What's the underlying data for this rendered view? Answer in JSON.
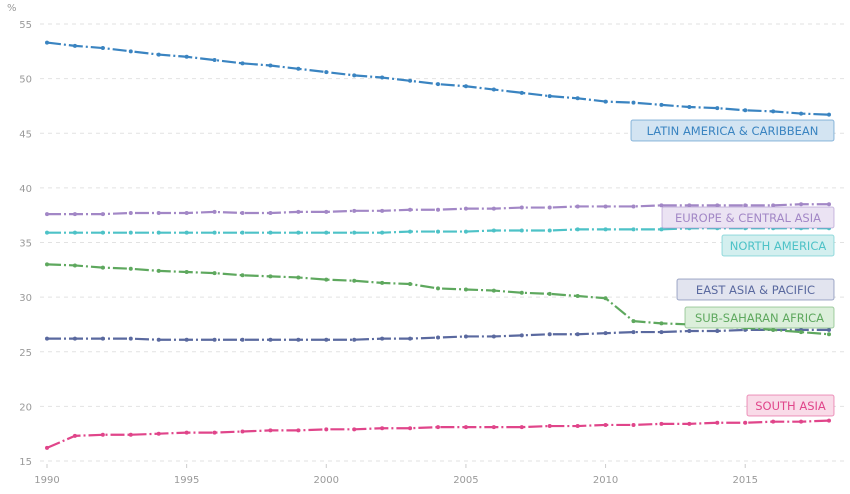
{
  "chart_data": {
    "type": "line",
    "title": "",
    "xlabel": "",
    "ylabel": "%",
    "xlim": [
      1990,
      2018
    ],
    "ylim": [
      15,
      55
    ],
    "grid": true,
    "x_ticks": [
      "1990",
      "1995",
      "2000",
      "2005",
      "2010",
      "2015"
    ],
    "y_ticks": [
      "15",
      "20",
      "25",
      "30",
      "35",
      "40",
      "45",
      "50",
      "55"
    ],
    "x": [
      1990,
      1991,
      1992,
      1993,
      1994,
      1995,
      1996,
      1997,
      1998,
      1999,
      2000,
      2001,
      2002,
      2003,
      2004,
      2005,
      2006,
      2007,
      2008,
      2009,
      2010,
      2011,
      2012,
      2013,
      2014,
      2015,
      2016,
      2017,
      2018
    ],
    "series": [
      {
        "name": "LATIN AMERICA & CARIBBEAN",
        "color": "#3a84c1",
        "fill": "#d3e4f2",
        "values": [
          53.3,
          53.0,
          52.8,
          52.5,
          52.2,
          52.0,
          51.7,
          51.4,
          51.2,
          50.9,
          50.6,
          50.3,
          50.1,
          49.8,
          49.5,
          49.3,
          49.0,
          48.7,
          48.4,
          48.2,
          47.9,
          47.8,
          47.6,
          47.4,
          47.3,
          47.1,
          47.0,
          46.8,
          46.7
        ]
      },
      {
        "name": "EUROPE & CENTRAL ASIA",
        "color": "#a287c6",
        "fill": "#ebe3f3",
        "values": [
          37.6,
          37.6,
          37.6,
          37.7,
          37.7,
          37.7,
          37.8,
          37.7,
          37.7,
          37.8,
          37.8,
          37.9,
          37.9,
          38.0,
          38.0,
          38.1,
          38.1,
          38.2,
          38.2,
          38.3,
          38.3,
          38.3,
          38.4,
          38.4,
          38.4,
          38.4,
          38.4,
          38.5,
          38.5
        ]
      },
      {
        "name": "NORTH AMERICA",
        "color": "#4dc2c7",
        "fill": "#d3efef",
        "values": [
          35.9,
          35.9,
          35.9,
          35.9,
          35.9,
          35.9,
          35.9,
          35.9,
          35.9,
          35.9,
          35.9,
          35.9,
          35.9,
          36.0,
          36.0,
          36.0,
          36.1,
          36.1,
          36.1,
          36.2,
          36.2,
          36.2,
          36.2,
          36.3,
          36.3,
          36.3,
          36.3,
          36.3,
          36.3
        ]
      },
      {
        "name": "EAST ASIA & PACIFIC",
        "color": "#5a699f",
        "fill": "#e2e4ef",
        "values": [
          26.2,
          26.2,
          26.2,
          26.2,
          26.1,
          26.1,
          26.1,
          26.1,
          26.1,
          26.1,
          26.1,
          26.1,
          26.2,
          26.2,
          26.3,
          26.4,
          26.4,
          26.5,
          26.6,
          26.6,
          26.7,
          26.8,
          26.8,
          26.9,
          26.9,
          27.0,
          27.0,
          27.0,
          27.0
        ]
      },
      {
        "name": "SUB-SAHARAN AFRICA",
        "color": "#5ea85e",
        "fill": "#dcefdb",
        "values": [
          33.0,
          32.9,
          32.7,
          32.6,
          32.4,
          32.3,
          32.2,
          32.0,
          31.9,
          31.8,
          31.6,
          31.5,
          31.3,
          31.2,
          30.8,
          30.7,
          30.6,
          30.4,
          30.3,
          30.1,
          29.9,
          27.8,
          27.6,
          27.5,
          27.3,
          27.2,
          27.0,
          26.8,
          26.6
        ]
      },
      {
        "name": "SOUTH ASIA",
        "color": "#e0458a",
        "fill": "#f9dbe8",
        "values": [
          16.2,
          17.3,
          17.4,
          17.4,
          17.5,
          17.6,
          17.6,
          17.7,
          17.8,
          17.8,
          17.9,
          17.9,
          18.0,
          18.0,
          18.1,
          18.1,
          18.1,
          18.1,
          18.2,
          18.2,
          18.3,
          18.3,
          18.4,
          18.4,
          18.5,
          18.5,
          18.6,
          18.6,
          18.7
        ]
      }
    ],
    "legend": "inline-labels-right"
  }
}
